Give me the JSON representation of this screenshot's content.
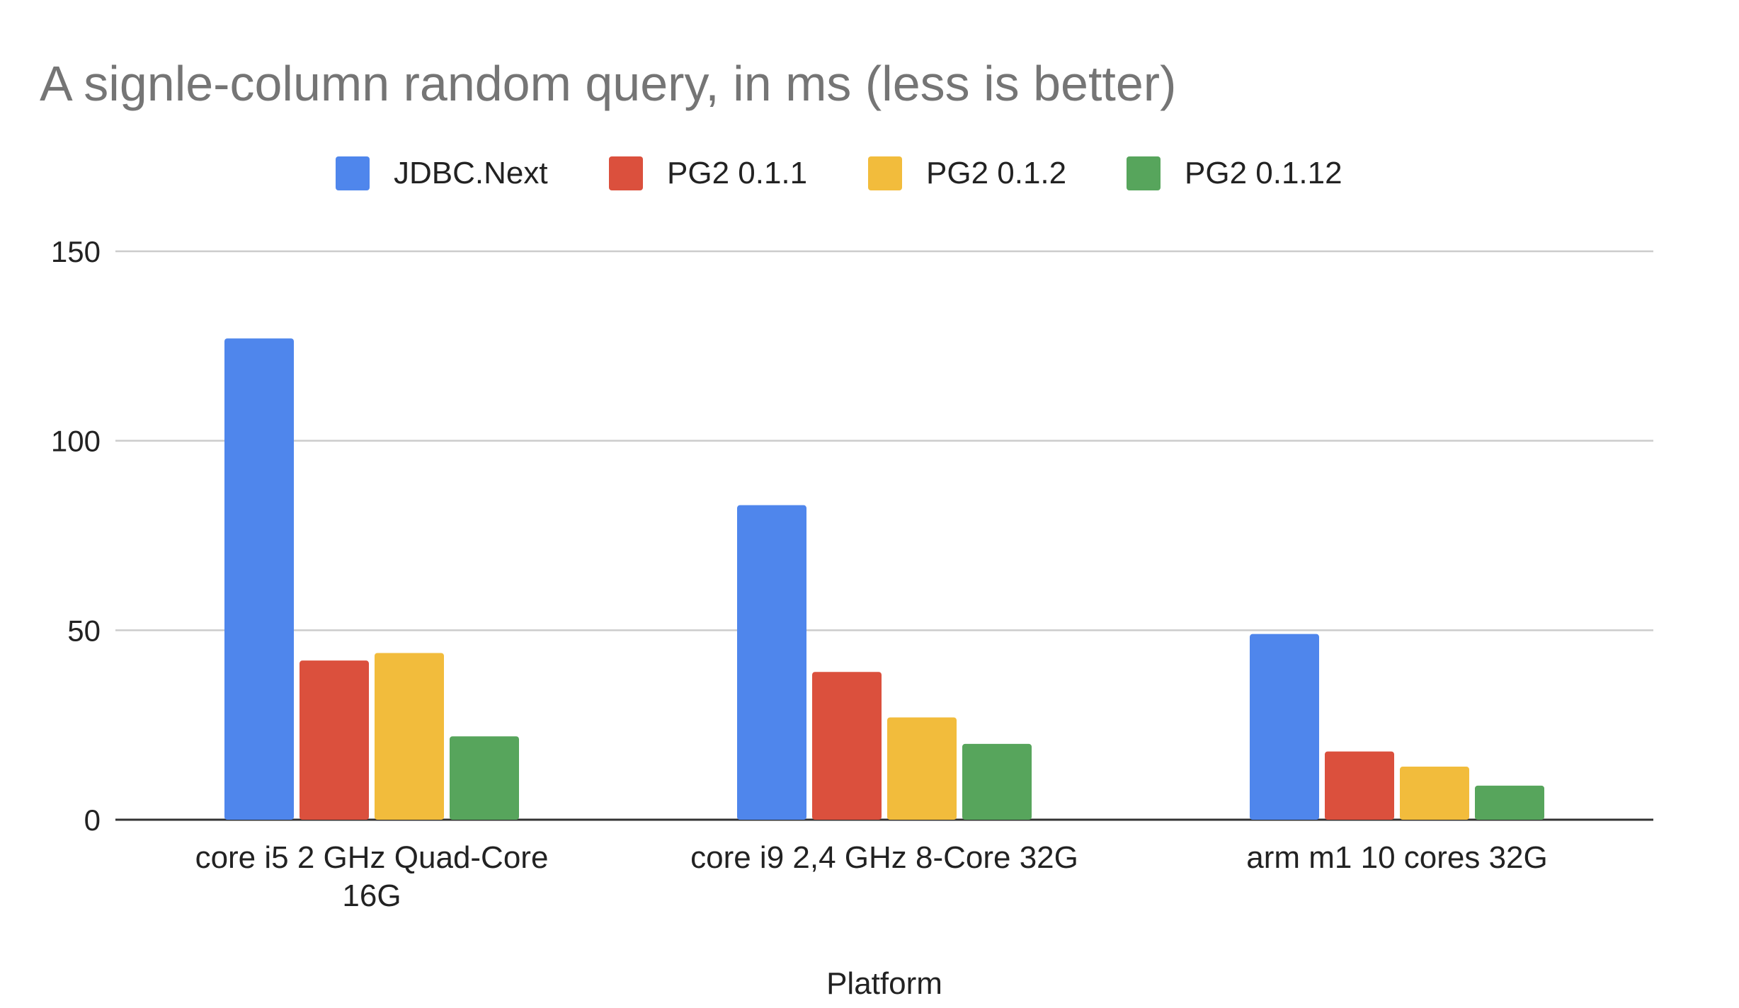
{
  "chart_data": {
    "type": "bar",
    "title": "A signle-column random query, in ms (less is better)",
    "xlabel": "Platform",
    "ylabel": "",
    "categories": [
      [
        "core i5 2 GHz Quad-Core",
        "16G"
      ],
      [
        "core i9 2,4 GHz 8-Core 32G"
      ],
      [
        "arm m1 10 cores 32G"
      ]
    ],
    "series": [
      {
        "name": "JDBC.Next",
        "color": "#4f86ec",
        "values": [
          127,
          83,
          49
        ]
      },
      {
        "name": "PG2 0.1.1",
        "color": "#db503d",
        "values": [
          42,
          39,
          18
        ]
      },
      {
        "name": "PG2 0.1.2",
        "color": "#f2bc3c",
        "values": [
          44,
          27,
          14
        ]
      },
      {
        "name": "PG2 0.1.12",
        "color": "#57a55c",
        "values": [
          22,
          20,
          9
        ]
      }
    ],
    "ylim": [
      0,
      150
    ],
    "yticks": [
      0,
      50,
      100,
      150
    ],
    "grid": true,
    "legend_position": "top"
  }
}
